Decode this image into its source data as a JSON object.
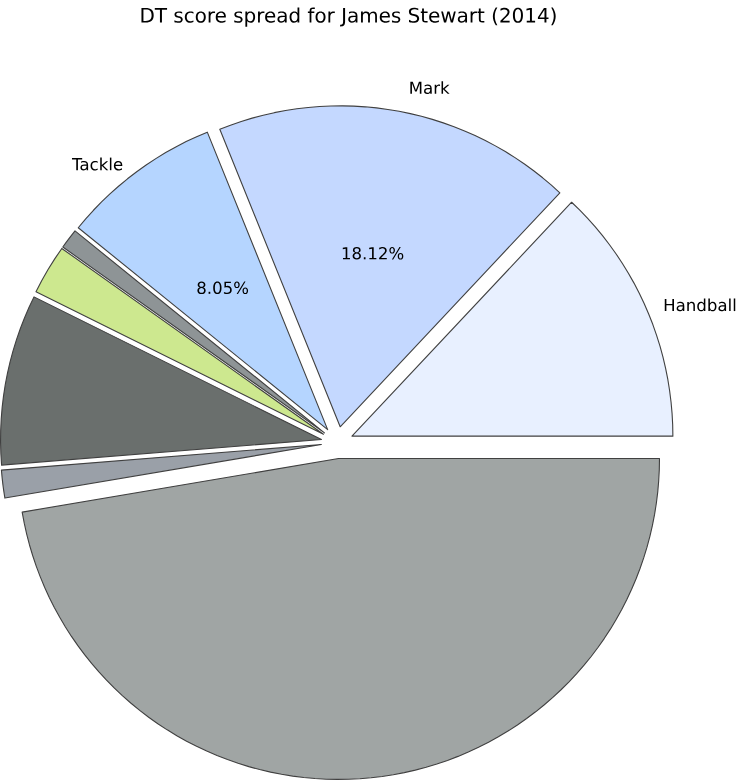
{
  "chart_data": {
    "type": "pie",
    "title": "DT score spread for James Stewart (2014)",
    "categories": [
      "Handball",
      "Mark",
      "Tackle",
      null,
      null,
      null,
      null,
      null
    ],
    "values": [
      13.0,
      18.12,
      8.05,
      1.0,
      2.5,
      8.6,
      1.4,
      47.33
    ],
    "value_labels": [
      null,
      "18.12%",
      "8.05%",
      null,
      null,
      null,
      null,
      null
    ],
    "colors": [
      "#e8f0ff",
      "#c4d8ff",
      "#b5d5ff",
      "#8e9496",
      "#cde88f",
      "#6a6f6d",
      "#9aa0a8",
      "#a0a5a4"
    ]
  }
}
